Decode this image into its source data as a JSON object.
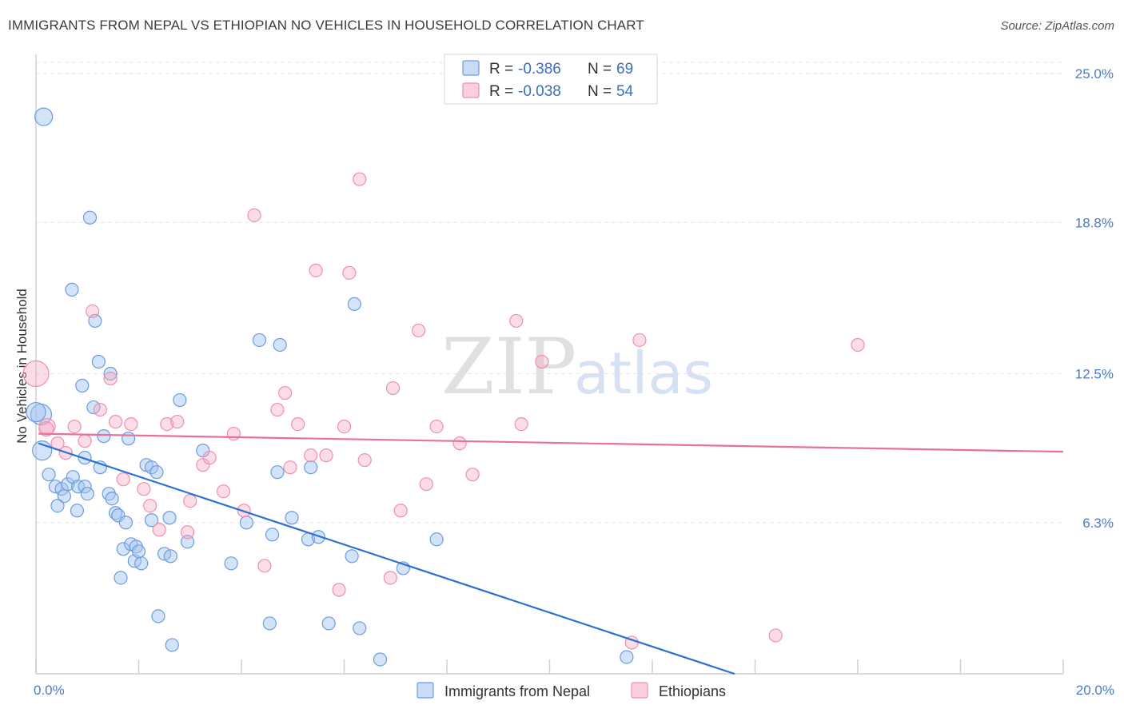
{
  "header": {
    "title": "IMMIGRANTS FROM NEPAL VS ETHIOPIAN NO VEHICLES IN HOUSEHOLD CORRELATION CHART",
    "source": "Source: ZipAtlas.com"
  },
  "watermark": {
    "part1": "ZIP",
    "part2": "atlas"
  },
  "chart_data": {
    "type": "scatter",
    "title": "IMMIGRANTS FROM NEPAL VS ETHIOPIAN NO VEHICLES IN HOUSEHOLD CORRELATION CHART",
    "xlabel": "",
    "ylabel": "No Vehicles in Household",
    "xlim": [
      0,
      20
    ],
    "ylim": [
      0,
      25.8
    ],
    "x_tick_labels": [
      "0.0%",
      "20.0%"
    ],
    "y_ticks": [
      6.3,
      12.5,
      18.8,
      25.0
    ],
    "y_tick_labels": [
      "6.3%",
      "12.5%",
      "18.8%",
      "25.0%"
    ],
    "grid": true,
    "legend_position": "top-center",
    "colors": {
      "nepal": "#6b9be0",
      "ethiopians": "#ef8fae",
      "nepal_line": "#2e6fd4",
      "ethiopians_line": "#e8709a"
    },
    "legend": [
      {
        "r_label": "R =",
        "r_value": "-0.386",
        "n_label": "N =",
        "n_value": "69"
      },
      {
        "r_label": "R =",
        "r_value": "-0.038",
        "n_label": "N =",
        "n_value": "54"
      }
    ],
    "series": [
      {
        "name": "Immigrants from Nepal",
        "trend": {
          "x": [
            0.05,
            13.6
          ],
          "y": [
            9.6,
            0.0
          ]
        },
        "points": [
          [
            0.15,
            23.2,
            11
          ],
          [
            0.1,
            10.8,
            13
          ],
          [
            0.12,
            9.3,
            12
          ],
          [
            1.05,
            19.0,
            8
          ],
          [
            0.7,
            16.0,
            8
          ],
          [
            1.15,
            14.7,
            8
          ],
          [
            1.22,
            13.0,
            8
          ],
          [
            1.45,
            12.5,
            8
          ],
          [
            0.9,
            12.0,
            8
          ],
          [
            1.12,
            11.1,
            8
          ],
          [
            1.32,
            9.9,
            8
          ],
          [
            1.8,
            9.8,
            8
          ],
          [
            0.95,
            9.0,
            8
          ],
          [
            1.25,
            8.6,
            8
          ],
          [
            0.25,
            8.3,
            8
          ],
          [
            0.38,
            7.8,
            8
          ],
          [
            0.5,
            7.7,
            8
          ],
          [
            0.62,
            7.9,
            8
          ],
          [
            0.72,
            8.2,
            8
          ],
          [
            0.82,
            7.8,
            8
          ],
          [
            0.55,
            7.4,
            8
          ],
          [
            0.95,
            7.8,
            8
          ],
          [
            1.0,
            7.5,
            8
          ],
          [
            1.42,
            7.5,
            8
          ],
          [
            1.48,
            7.3,
            8
          ],
          [
            0.42,
            7.0,
            8
          ],
          [
            0.8,
            6.8,
            8
          ],
          [
            1.55,
            6.7,
            8
          ],
          [
            1.6,
            6.6,
            8
          ],
          [
            1.75,
            6.3,
            8
          ],
          [
            1.7,
            5.2,
            8
          ],
          [
            1.85,
            5.4,
            8
          ],
          [
            1.95,
            5.3,
            8
          ],
          [
            1.92,
            4.7,
            8
          ],
          [
            2.05,
            4.6,
            8
          ],
          [
            2.0,
            5.1,
            8
          ],
          [
            1.65,
            4.0,
            8
          ],
          [
            2.15,
            8.7,
            8
          ],
          [
            2.25,
            8.6,
            8
          ],
          [
            2.35,
            8.4,
            8
          ],
          [
            2.25,
            6.4,
            8
          ],
          [
            2.6,
            6.5,
            8
          ],
          [
            2.5,
            5.0,
            8
          ],
          [
            2.62,
            4.9,
            8
          ],
          [
            2.95,
            5.5,
            8
          ],
          [
            2.8,
            11.4,
            8
          ],
          [
            3.25,
            9.3,
            8
          ],
          [
            2.38,
            2.4,
            8
          ],
          [
            2.65,
            1.2,
            8
          ],
          [
            3.8,
            4.6,
            8
          ],
          [
            4.35,
            13.9,
            8
          ],
          [
            4.75,
            13.7,
            8
          ],
          [
            4.1,
            6.3,
            8
          ],
          [
            4.6,
            5.8,
            8
          ],
          [
            4.7,
            8.4,
            8
          ],
          [
            4.98,
            6.5,
            8
          ],
          [
            5.3,
            5.6,
            8
          ],
          [
            5.5,
            5.7,
            8
          ],
          [
            5.35,
            8.6,
            8
          ],
          [
            6.2,
            15.4,
            8
          ],
          [
            4.55,
            2.1,
            8
          ],
          [
            5.7,
            2.1,
            8
          ],
          [
            6.3,
            1.9,
            8
          ],
          [
            6.15,
            4.9,
            8
          ],
          [
            7.15,
            4.4,
            8
          ],
          [
            7.8,
            5.6,
            8
          ],
          [
            6.7,
            0.6,
            8
          ],
          [
            11.5,
            0.7,
            8
          ],
          [
            0.0,
            10.9,
            12
          ]
        ]
      },
      {
        "name": "Ethiopians",
        "trend": {
          "x": [
            0.05,
            20.0
          ],
          "y": [
            10.0,
            9.25
          ]
        },
        "points": [
          [
            0.0,
            12.5,
            16
          ],
          [
            0.22,
            10.3,
            10
          ],
          [
            0.42,
            9.6,
            8
          ],
          [
            0.58,
            9.2,
            8
          ],
          [
            0.75,
            10.3,
            8
          ],
          [
            0.95,
            9.7,
            8
          ],
          [
            1.1,
            15.1,
            8
          ],
          [
            1.25,
            11.0,
            8
          ],
          [
            1.45,
            12.3,
            8
          ],
          [
            1.55,
            10.5,
            8
          ],
          [
            1.7,
            8.1,
            8
          ],
          [
            1.85,
            10.4,
            8
          ],
          [
            2.1,
            7.7,
            8
          ],
          [
            2.22,
            7.0,
            8
          ],
          [
            2.4,
            6.0,
            8
          ],
          [
            2.55,
            10.4,
            8
          ],
          [
            2.75,
            10.5,
            8
          ],
          [
            2.95,
            5.9,
            8
          ],
          [
            3.0,
            7.2,
            8
          ],
          [
            3.25,
            8.7,
            8
          ],
          [
            3.38,
            9.0,
            8
          ],
          [
            3.65,
            7.6,
            8
          ],
          [
            3.85,
            10.0,
            8
          ],
          [
            4.05,
            6.8,
            8
          ],
          [
            4.25,
            19.1,
            8
          ],
          [
            4.45,
            4.5,
            8
          ],
          [
            4.7,
            11.0,
            8
          ],
          [
            4.85,
            11.7,
            8
          ],
          [
            4.95,
            8.6,
            8
          ],
          [
            5.1,
            10.4,
            8
          ],
          [
            5.35,
            9.1,
            8
          ],
          [
            5.45,
            16.8,
            8
          ],
          [
            5.65,
            9.1,
            8
          ],
          [
            5.9,
            3.5,
            8
          ],
          [
            6.0,
            10.3,
            8
          ],
          [
            6.1,
            16.7,
            8
          ],
          [
            6.3,
            20.6,
            8
          ],
          [
            6.4,
            8.9,
            8
          ],
          [
            6.9,
            4.0,
            8
          ],
          [
            6.95,
            11.9,
            8
          ],
          [
            7.1,
            6.8,
            8
          ],
          [
            7.45,
            14.3,
            8
          ],
          [
            7.6,
            7.9,
            8
          ],
          [
            7.8,
            10.3,
            8
          ],
          [
            8.25,
            9.6,
            8
          ],
          [
            8.5,
            8.3,
            8
          ],
          [
            9.35,
            14.7,
            8
          ],
          [
            9.45,
            10.4,
            8
          ],
          [
            9.85,
            13.0,
            8
          ],
          [
            11.6,
            1.3,
            8
          ],
          [
            11.75,
            13.9,
            8
          ],
          [
            14.4,
            1.6,
            8
          ],
          [
            16.0,
            13.7,
            8
          ],
          [
            0.2,
            10.2,
            9
          ]
        ]
      }
    ]
  },
  "bottom_legend": {
    "nepal_label": "Immigrants from Nepal",
    "ethiopians_label": "Ethiopians"
  }
}
